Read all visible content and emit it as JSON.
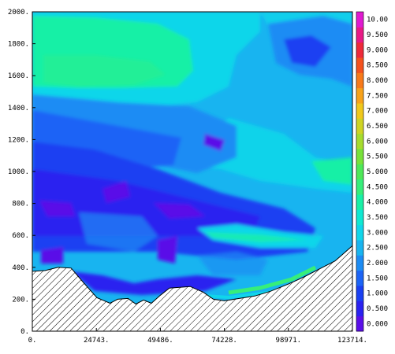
{
  "chart_data": {
    "type": "heatmap",
    "title": "",
    "xlabel": "",
    "ylabel": "",
    "x_ticks": [
      "0.",
      "24743.",
      "49486.",
      "74228.",
      "98971.",
      "123714."
    ],
    "y_ticks": [
      "0.",
      "200.",
      "400.",
      "600.",
      "800.",
      "1000.",
      "1200.",
      "1400.",
      "1600.",
      "1800.",
      "2000."
    ],
    "xlim": [
      0,
      123714
    ],
    "ylim": [
      0,
      2000
    ],
    "colorbar": {
      "labels": [
        "0.000",
        "0.500",
        "1.000",
        "1.500",
        "2.000",
        "2.500",
        "3.000",
        "3.500",
        "4.000",
        "4.500",
        "5.000",
        "5.500",
        "6.000",
        "6.500",
        "7.000",
        "7.500",
        "8.000",
        "8.500",
        "9.000",
        "9.500",
        "10.00"
      ],
      "colors": [
        "#5a0fe8",
        "#2a22f0",
        "#1a40f2",
        "#1c64f6",
        "#1c8cf4",
        "#18b4f0",
        "#10d6ea",
        "#0fe8d2",
        "#18f0a6",
        "#36ee7a",
        "#4ee858",
        "#78e23a",
        "#a6dc2e",
        "#cfd424",
        "#f0c81c",
        "#f8a21a",
        "#f87a1a",
        "#f4521e",
        "#ee2a3a",
        "#e81a86",
        "#e01ad0"
      ]
    },
    "terrain": {
      "x": [
        0,
        5000,
        10000,
        15000,
        20000,
        25000,
        30000,
        33000,
        37000,
        40000,
        43000,
        46000,
        49486,
        53000,
        57000,
        61000,
        66000,
        70000,
        74228,
        80000,
        86000,
        92000,
        98971,
        105000,
        111000,
        117000,
        123714
      ],
      "y": [
        375,
        380,
        400,
        395,
        300,
        210,
        175,
        200,
        205,
        170,
        195,
        175,
        225,
        270,
        275,
        280,
        245,
        200,
        190,
        205,
        220,
        250,
        295,
        340,
        390,
        440,
        535
      ]
    },
    "grid": false,
    "legend": "colorbar-right"
  }
}
